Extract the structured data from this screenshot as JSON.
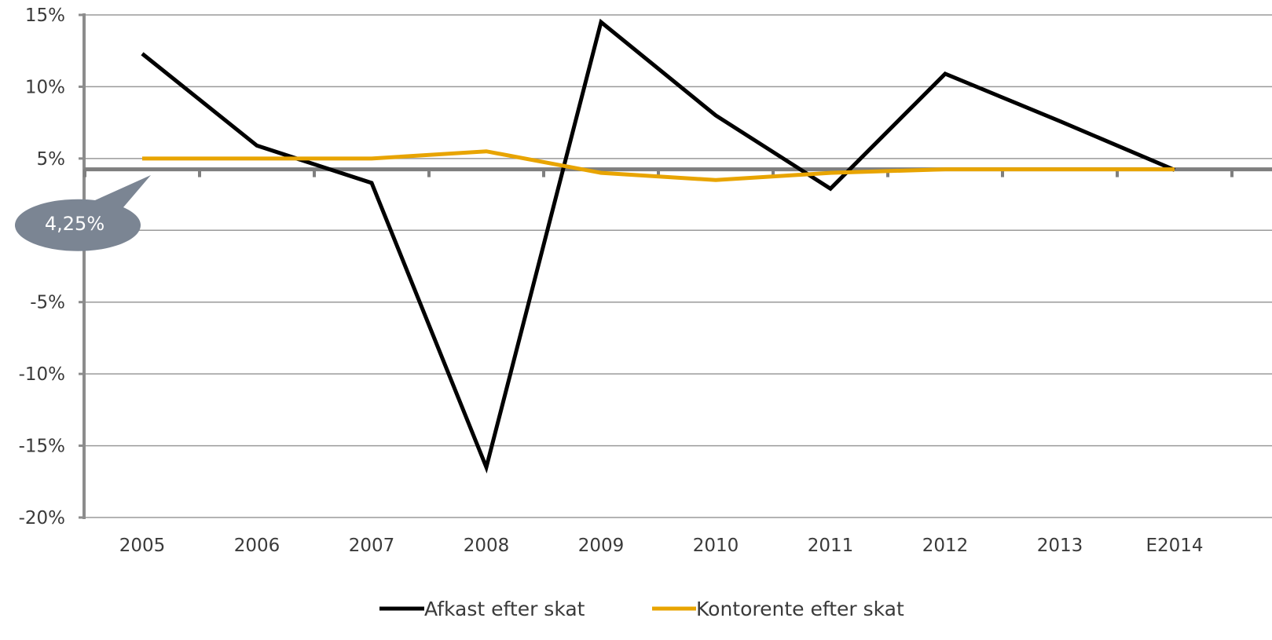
{
  "chart_data": {
    "type": "line",
    "title": "",
    "xlabel": "",
    "ylabel": "",
    "categories": [
      "2005",
      "2006",
      "2007",
      "2008",
      "2009",
      "2010",
      "2011",
      "2012",
      "2013",
      "E2014"
    ],
    "ylim": [
      -20,
      15
    ],
    "y_ticks": [
      15,
      10,
      5,
      0,
      -5,
      -10,
      -15,
      -20
    ],
    "y_tick_labels": [
      "15%",
      "10%",
      "5%",
      "",
      "-5%",
      "-10%",
      "-15%",
      "-20%"
    ],
    "grid": true,
    "legend_position": "bottom",
    "series": [
      {
        "name": "Afkast efter skat",
        "color": "#000000",
        "values": [
          12.3,
          5.9,
          3.3,
          -16.5,
          14.5,
          8.0,
          2.9,
          10.9,
          7.6,
          4.2
        ]
      },
      {
        "name": "Kontorente efter skat",
        "color": "#E8A400",
        "values": [
          5.0,
          5.0,
          5.0,
          5.5,
          4.0,
          3.5,
          4.0,
          4.25,
          4.25,
          4.25
        ]
      }
    ],
    "reference_line": {
      "value": 4.25,
      "color": "#7f7f7f"
    },
    "annotation": {
      "text": "4,25%",
      "value": 4.25,
      "fill": "#7b8593"
    }
  }
}
